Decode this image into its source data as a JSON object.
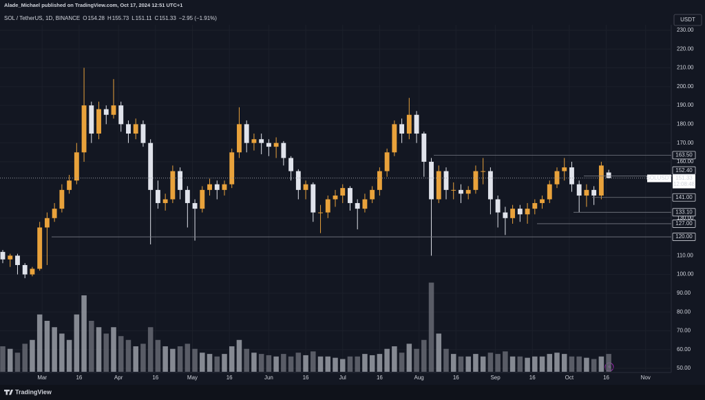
{
  "header": {
    "publisher": "Alade_Michael published on TradingView.com, Oct 17, 2024 12:51 UTC+1",
    "symbol": "SOL / TetherUS, 1D, BINANCE",
    "ohlc": [
      {
        "label": "O",
        "value": "154.28"
      },
      {
        "label": "H",
        "value": "155.73"
      },
      {
        "label": "L",
        "value": "151.11"
      },
      {
        "label": "C",
        "value": "151.33"
      }
    ],
    "change": "−2.95 (−1.91%)",
    "currency": "USDT"
  },
  "footer": {
    "brand": "TradingView"
  },
  "chart_data": {
    "type": "candlestick",
    "up_color": "#e9a23b",
    "down_color": "#e0e3eb",
    "volume_up_color": "#a3a6af",
    "volume_down_color": "#6b6e78",
    "x": [
      "2024-02-14",
      "2024-02-17",
      "2024-02-20",
      "2024-02-23",
      "2024-02-26",
      "2024-02-29",
      "2024-03-03",
      "2024-03-06",
      "2024-03-09",
      "2024-03-12",
      "2024-03-15",
      "2024-03-18",
      "2024-03-21",
      "2024-03-24",
      "2024-03-27",
      "2024-03-30",
      "2024-04-02",
      "2024-04-05",
      "2024-04-08",
      "2024-04-11",
      "2024-04-14",
      "2024-04-17",
      "2024-04-20",
      "2024-04-23",
      "2024-04-26",
      "2024-04-29",
      "2024-05-02",
      "2024-05-05",
      "2024-05-08",
      "2024-05-11",
      "2024-05-14",
      "2024-05-17",
      "2024-05-20",
      "2024-05-23",
      "2024-05-26",
      "2024-05-29",
      "2024-06-01",
      "2024-06-04",
      "2024-06-07",
      "2024-06-10",
      "2024-06-13",
      "2024-06-16",
      "2024-06-19",
      "2024-06-22",
      "2024-06-25",
      "2024-06-28",
      "2024-07-01",
      "2024-07-04",
      "2024-07-07",
      "2024-07-10",
      "2024-07-13",
      "2024-07-16",
      "2024-07-19",
      "2024-07-22",
      "2024-07-25",
      "2024-07-28",
      "2024-07-31",
      "2024-08-03",
      "2024-08-06",
      "2024-08-09",
      "2024-08-12",
      "2024-08-15",
      "2024-08-18",
      "2024-08-21",
      "2024-08-24",
      "2024-08-27",
      "2024-08-30",
      "2024-09-02",
      "2024-09-05",
      "2024-09-08",
      "2024-09-11",
      "2024-09-14",
      "2024-09-17",
      "2024-09-20",
      "2024-09-23",
      "2024-09-26",
      "2024-09-29",
      "2024-10-02",
      "2024-10-05",
      "2024-10-08",
      "2024-10-11",
      "2024-10-14",
      "2024-10-17"
    ],
    "open": [
      112,
      108,
      110,
      105,
      100,
      103,
      125,
      130,
      135,
      145,
      150,
      165,
      190,
      175,
      188,
      185,
      190,
      180,
      175,
      180,
      170,
      145,
      138,
      140,
      155,
      145,
      138,
      135,
      145,
      148,
      145,
      148,
      165,
      180,
      170,
      172,
      170,
      168,
      170,
      162,
      155,
      145,
      148,
      133,
      133,
      140,
      142,
      146,
      138,
      135,
      140,
      145,
      155,
      165,
      180,
      175,
      185,
      175,
      160,
      140,
      155,
      145,
      145,
      143,
      145,
      155,
      155,
      140,
      133,
      130,
      135,
      132,
      135,
      138,
      140,
      148,
      155,
      157,
      148,
      142,
      145,
      142,
      154.28
    ],
    "high": [
      113,
      111,
      111,
      106,
      104,
      128,
      133,
      138,
      148,
      153,
      170,
      210,
      192,
      192,
      190,
      204,
      192,
      182,
      183,
      182,
      172,
      150,
      143,
      158,
      157,
      147,
      140,
      147,
      151,
      150,
      150,
      167,
      189,
      182,
      175,
      175,
      172,
      173,
      171,
      163,
      156,
      150,
      149,
      137,
      142,
      145,
      148,
      147,
      140,
      143,
      147,
      157,
      167,
      182,
      183,
      194,
      187,
      176,
      162,
      158,
      157,
      149,
      148,
      147,
      158,
      162,
      157,
      142,
      136,
      137,
      137,
      138,
      140,
      142,
      150,
      157,
      162,
      160,
      150,
      148,
      147,
      160,
      155.73
    ],
    "low": [
      106,
      104,
      100,
      98,
      99,
      102,
      105,
      128,
      133,
      143,
      148,
      160,
      170,
      172,
      180,
      183,
      176,
      170,
      172,
      168,
      116,
      135,
      134,
      138,
      140,
      125,
      118,
      133,
      142,
      140,
      142,
      146,
      162,
      165,
      166,
      164,
      163,
      162,
      158,
      150,
      140,
      140,
      128,
      122,
      130,
      136,
      138,
      134,
      124,
      133,
      138,
      142,
      152,
      163,
      170,
      172,
      170,
      152,
      110,
      138,
      140,
      140,
      138,
      140,
      143,
      148,
      132,
      125,
      121,
      127,
      128,
      127,
      132,
      135,
      138,
      146,
      150,
      144,
      133,
      136,
      137,
      140,
      151.11
    ],
    "close": [
      108,
      110,
      105,
      100,
      103,
      125,
      130,
      135,
      145,
      150,
      165,
      190,
      175,
      188,
      185,
      190,
      180,
      175,
      180,
      170,
      145,
      138,
      140,
      155,
      145,
      138,
      135,
      145,
      148,
      145,
      148,
      165,
      180,
      170,
      172,
      170,
      168,
      170,
      162,
      155,
      145,
      148,
      133,
      133,
      140,
      142,
      146,
      138,
      135,
      140,
      145,
      155,
      165,
      180,
      175,
      185,
      175,
      160,
      140,
      155,
      145,
      145,
      143,
      145,
      155,
      155,
      140,
      133,
      130,
      135,
      132,
      135,
      138,
      140,
      148,
      155,
      157,
      148,
      142,
      145,
      142,
      158,
      151.33
    ],
    "volume": [
      20,
      18,
      15,
      22,
      25,
      45,
      40,
      35,
      30,
      25,
      45,
      60,
      40,
      35,
      30,
      35,
      28,
      25,
      20,
      22,
      35,
      25,
      20,
      18,
      20,
      22,
      18,
      15,
      14,
      12,
      14,
      20,
      25,
      18,
      15,
      14,
      13,
      12,
      14,
      12,
      15,
      13,
      16,
      12,
      12,
      11,
      10,
      12,
      12,
      14,
      13,
      14,
      18,
      20,
      15,
      22,
      18,
      25,
      70,
      30,
      18,
      14,
      12,
      12,
      14,
      12,
      15,
      14,
      16,
      12,
      12,
      11,
      12,
      12,
      14,
      15,
      14,
      12,
      12,
      11,
      10,
      12,
      14
    ],
    "volume_ylim": [
      0,
      100
    ],
    "xlim": [
      "2024-02-14",
      "2024-11-10"
    ],
    "xticks": [
      {
        "value": "2024-03-01",
        "label": "Mar"
      },
      {
        "value": "2024-03-16",
        "label": "16"
      },
      {
        "value": "2024-04-01",
        "label": "Apr"
      },
      {
        "value": "2024-04-16",
        "label": "16"
      },
      {
        "value": "2024-05-01",
        "label": "May"
      },
      {
        "value": "2024-05-16",
        "label": "16"
      },
      {
        "value": "2024-06-01",
        "label": "Jun"
      },
      {
        "value": "2024-06-16",
        "label": "16"
      },
      {
        "value": "2024-07-01",
        "label": "Jul"
      },
      {
        "value": "2024-07-16",
        "label": "16"
      },
      {
        "value": "2024-08-01",
        "label": "Aug"
      },
      {
        "value": "2024-08-16",
        "label": "16"
      },
      {
        "value": "2024-09-01",
        "label": "Sep"
      },
      {
        "value": "2024-09-16",
        "label": "16"
      },
      {
        "value": "2024-10-01",
        "label": "Oct"
      },
      {
        "value": "2024-10-16",
        "label": "16"
      },
      {
        "value": "2024-11-01",
        "label": "Nov"
      }
    ],
    "ylim": [
      50,
      230
    ],
    "yticks": [
      {
        "value": 50,
        "label": "50.00"
      },
      {
        "value": 60,
        "label": "60.00"
      },
      {
        "value": 70,
        "label": "70.00"
      },
      {
        "value": 80,
        "label": "80.00"
      },
      {
        "value": 90,
        "label": "90.00"
      },
      {
        "value": 100,
        "label": "100.00"
      },
      {
        "value": 110,
        "label": "110.00"
      },
      {
        "value": 130,
        "label": "130.00"
      },
      {
        "value": 160,
        "label": "160.00"
      },
      {
        "value": 170,
        "label": "170.00"
      },
      {
        "value": 180,
        "label": "180.00"
      },
      {
        "value": 190,
        "label": "190.00"
      },
      {
        "value": 200,
        "label": "200.00"
      },
      {
        "value": 210,
        "label": "210.00"
      },
      {
        "value": 220,
        "label": "220.00"
      },
      {
        "value": 230,
        "label": "230.00"
      }
    ],
    "grid": true,
    "levels": [
      {
        "value": 163.5,
        "label": "163.50"
      },
      {
        "value": 152.4,
        "label": "152.40"
      },
      {
        "value": 141,
        "label": "141.00"
      },
      {
        "value": 133.1,
        "label": "133.10"
      },
      {
        "value": 127,
        "label": "127.00"
      },
      {
        "value": 120,
        "label": "120.00"
      }
    ],
    "current": {
      "symbol": "SOLUSDT",
      "price": {
        "value": 151.33,
        "label": "151.33"
      },
      "countdown": "12:08:48"
    }
  }
}
